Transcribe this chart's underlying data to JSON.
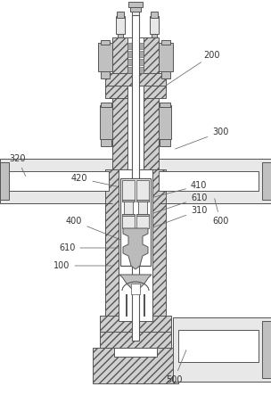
{
  "bg": "#ffffff",
  "lc": "#555555",
  "hfc": "#d0d0d0",
  "white": "#ffffff",
  "gray": "#c0c0c0",
  "lgray": "#e8e8e8",
  "label_color": "#333333",
  "label_fs": 7.0,
  "lw": 0.7
}
